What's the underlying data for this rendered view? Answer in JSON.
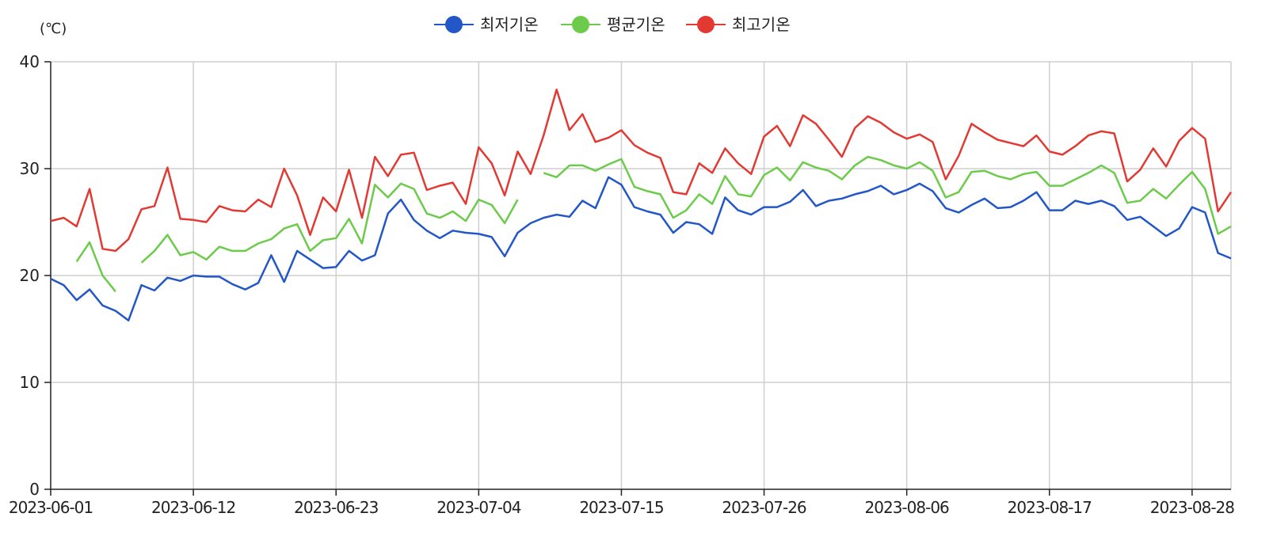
{
  "chart_data": {
    "type": "line",
    "y_unit": "(℃)",
    "ylim": [
      0,
      40
    ],
    "y_ticks": [
      0,
      10,
      20,
      30,
      40
    ],
    "x_tick_labels": [
      "2023-06-01",
      "2023-06-12",
      "2023-06-23",
      "2023-07-04",
      "2023-07-15",
      "2023-07-26",
      "2023-08-06",
      "2023-08-17",
      "2023-08-28"
    ],
    "x_start": "2023-06-01",
    "x_end": "2023-08-31",
    "grid": true,
    "legend_position": "top-center",
    "series": [
      {
        "name": "최저기온",
        "color": "#2356c6",
        "values": [
          19.7,
          19.1,
          17.7,
          18.7,
          17.2,
          16.7,
          15.8,
          19.1,
          18.6,
          19.8,
          19.5,
          20.0,
          19.9,
          19.9,
          19.2,
          18.7,
          19.3,
          21.9,
          19.4,
          22.3,
          21.5,
          20.7,
          20.8,
          22.3,
          21.4,
          21.9,
          25.8,
          27.1,
          25.2,
          24.2,
          23.5,
          24.2,
          24.0,
          23.9,
          23.6,
          21.8,
          24.0,
          24.9,
          25.4,
          25.7,
          25.5,
          27.0,
          26.3,
          29.2,
          28.5,
          26.4,
          26.0,
          25.7,
          24.0,
          25.0,
          24.8,
          23.9,
          27.3,
          26.1,
          25.7,
          26.4,
          26.4,
          26.9,
          28.0,
          26.5,
          27.0,
          27.2,
          27.6,
          27.9,
          28.4,
          27.6,
          28.0,
          28.6,
          27.9,
          26.3,
          25.9,
          26.6,
          27.2,
          26.3,
          26.4,
          27.0,
          27.8,
          26.1,
          26.1,
          27.0,
          26.7,
          27.0,
          26.5,
          25.2,
          25.5,
          24.6,
          23.7,
          24.4,
          26.4,
          25.9,
          22.1,
          21.6
        ]
      },
      {
        "name": "평균기온",
        "color": "#6ccb4b",
        "values": [
          null,
          null,
          21.3,
          23.1,
          20.0,
          18.5,
          null,
          21.2,
          22.3,
          23.8,
          21.9,
          22.2,
          21.5,
          22.7,
          22.3,
          22.3,
          23.0,
          23.4,
          24.4,
          24.8,
          22.3,
          23.3,
          23.5,
          25.3,
          23.0,
          28.5,
          27.3,
          28.6,
          28.1,
          25.8,
          25.4,
          26.0,
          25.1,
          27.1,
          26.6,
          24.9,
          27.1,
          null,
          29.6,
          29.2,
          30.3,
          30.3,
          29.8,
          30.4,
          30.9,
          28.3,
          27.9,
          27.6,
          25.4,
          26.1,
          27.6,
          26.7,
          29.3,
          27.6,
          27.4,
          29.4,
          30.1,
          28.9,
          30.6,
          30.1,
          29.8,
          29.0,
          30.3,
          31.1,
          30.8,
          30.3,
          30.0,
          30.6,
          29.8,
          27.3,
          27.8,
          29.7,
          29.8,
          29.3,
          29.0,
          29.5,
          29.7,
          28.4,
          28.4,
          29.0,
          29.6,
          30.3,
          29.6,
          26.8,
          27.0,
          28.1,
          27.2,
          28.5,
          29.7,
          28.1,
          23.9,
          24.6
        ]
      },
      {
        "name": "최고기온",
        "color": "#e23a33",
        "values": [
          25.1,
          25.4,
          24.6,
          28.1,
          22.5,
          22.3,
          23.4,
          26.2,
          26.5,
          30.1,
          25.3,
          25.2,
          25.0,
          26.5,
          26.1,
          26.0,
          27.1,
          26.4,
          30.0,
          27.5,
          23.8,
          27.3,
          26.0,
          29.9,
          25.4,
          31.1,
          29.3,
          31.3,
          31.5,
          28.0,
          28.4,
          28.7,
          26.7,
          32.0,
          30.5,
          27.5,
          31.6,
          29.5,
          33.1,
          37.4,
          33.6,
          35.1,
          32.5,
          32.9,
          33.6,
          32.2,
          31.5,
          31.0,
          27.8,
          27.6,
          30.5,
          29.6,
          31.9,
          30.5,
          29.5,
          33.0,
          34.0,
          32.1,
          35.0,
          34.2,
          32.7,
          31.1,
          33.8,
          34.9,
          34.3,
          33.4,
          32.8,
          33.2,
          32.5,
          29.0,
          31.2,
          34.2,
          33.4,
          32.7,
          32.4,
          32.1,
          33.1,
          31.6,
          31.3,
          32.1,
          33.1,
          33.5,
          33.3,
          28.8,
          29.9,
          31.9,
          30.2,
          32.6,
          33.8,
          32.8,
          26.0,
          27.8
        ]
      }
    ]
  }
}
